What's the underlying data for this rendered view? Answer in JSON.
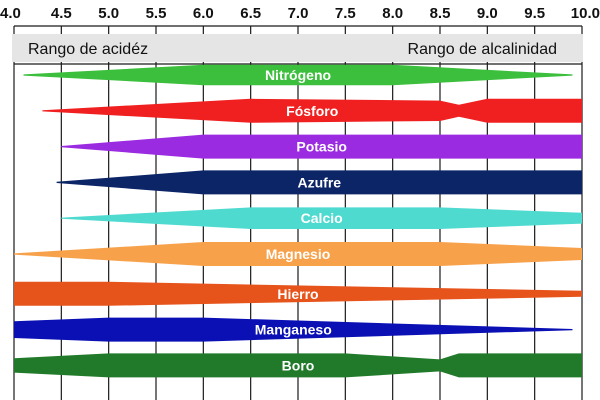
{
  "chart_data": {
    "type": "area",
    "title": "",
    "xlabel": "",
    "ylabel": "",
    "x_ticks": [
      "4.0",
      "4.5",
      "5.0",
      "5.5",
      "6.0",
      "6.5",
      "7.0",
      "7.5",
      "8.0",
      "8.5",
      "9.0",
      "9.5",
      "10.0"
    ],
    "xlim": [
      4.0,
      10.0
    ],
    "grid": true,
    "range_labels": {
      "acid": "Rango de acidéz",
      "alkaline": "Rango de alcalinidad"
    },
    "series": [
      {
        "name": "Nitrógeno",
        "color": "#3cbf3c",
        "points": [
          [
            4.1,
            0.05
          ],
          [
            6.0,
            0.85
          ],
          [
            8.0,
            0.85
          ],
          [
            9.9,
            0.05
          ]
        ]
      },
      {
        "name": "Fósforo",
        "color": "#f02020",
        "points": [
          [
            4.3,
            0.05
          ],
          [
            6.5,
            1.0
          ],
          [
            8.5,
            0.85
          ],
          [
            8.7,
            0.5
          ],
          [
            9.0,
            1.0
          ],
          [
            10.0,
            1.0
          ]
        ]
      },
      {
        "name": "Potasio",
        "color": "#9b2be0",
        "points": [
          [
            4.5,
            0.05
          ],
          [
            6.0,
            1.0
          ],
          [
            10.0,
            1.0
          ]
        ]
      },
      {
        "name": "Azufre",
        "color": "#0c2566",
        "points": [
          [
            4.45,
            0.05
          ],
          [
            6.0,
            1.0
          ],
          [
            10.0,
            1.0
          ]
        ]
      },
      {
        "name": "Calcio",
        "color": "#4fdad0",
        "points": [
          [
            4.5,
            0.05
          ],
          [
            6.5,
            0.9
          ],
          [
            8.5,
            0.9
          ],
          [
            10.0,
            0.45
          ]
        ]
      },
      {
        "name": "Magnesio",
        "color": "#f7a14a",
        "points": [
          [
            4.0,
            0.05
          ],
          [
            6.0,
            1.0
          ],
          [
            8.5,
            1.0
          ],
          [
            10.0,
            0.5
          ]
        ]
      },
      {
        "name": "Hierro",
        "color": "#e6531b",
        "points": [
          [
            4.0,
            1.0
          ],
          [
            5.0,
            1.0
          ],
          [
            10.0,
            0.25
          ]
        ]
      },
      {
        "name": "Manganeso",
        "color": "#0a10b4",
        "points": [
          [
            4.0,
            0.7
          ],
          [
            5.0,
            1.0
          ],
          [
            6.0,
            1.0
          ],
          [
            9.9,
            0.05
          ]
        ]
      },
      {
        "name": "Boro",
        "color": "#217a2a",
        "points": [
          [
            4.0,
            0.6
          ],
          [
            5.0,
            1.0
          ],
          [
            7.5,
            1.0
          ],
          [
            8.5,
            0.5
          ],
          [
            8.7,
            1.0
          ],
          [
            10.0,
            1.0
          ]
        ]
      }
    ]
  }
}
